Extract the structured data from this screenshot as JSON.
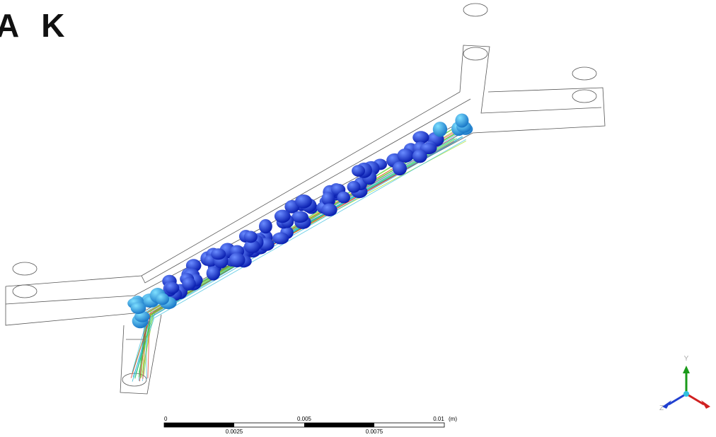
{
  "logo": "A K",
  "scale_bar": {
    "top_labels": [
      "0",
      "0.005",
      "0.01"
    ],
    "bottom_labels": [
      "0.0025",
      "0.0075"
    ],
    "unit": "(m)"
  },
  "triad": {
    "y_label": "Y",
    "z_label": "Z"
  }
}
